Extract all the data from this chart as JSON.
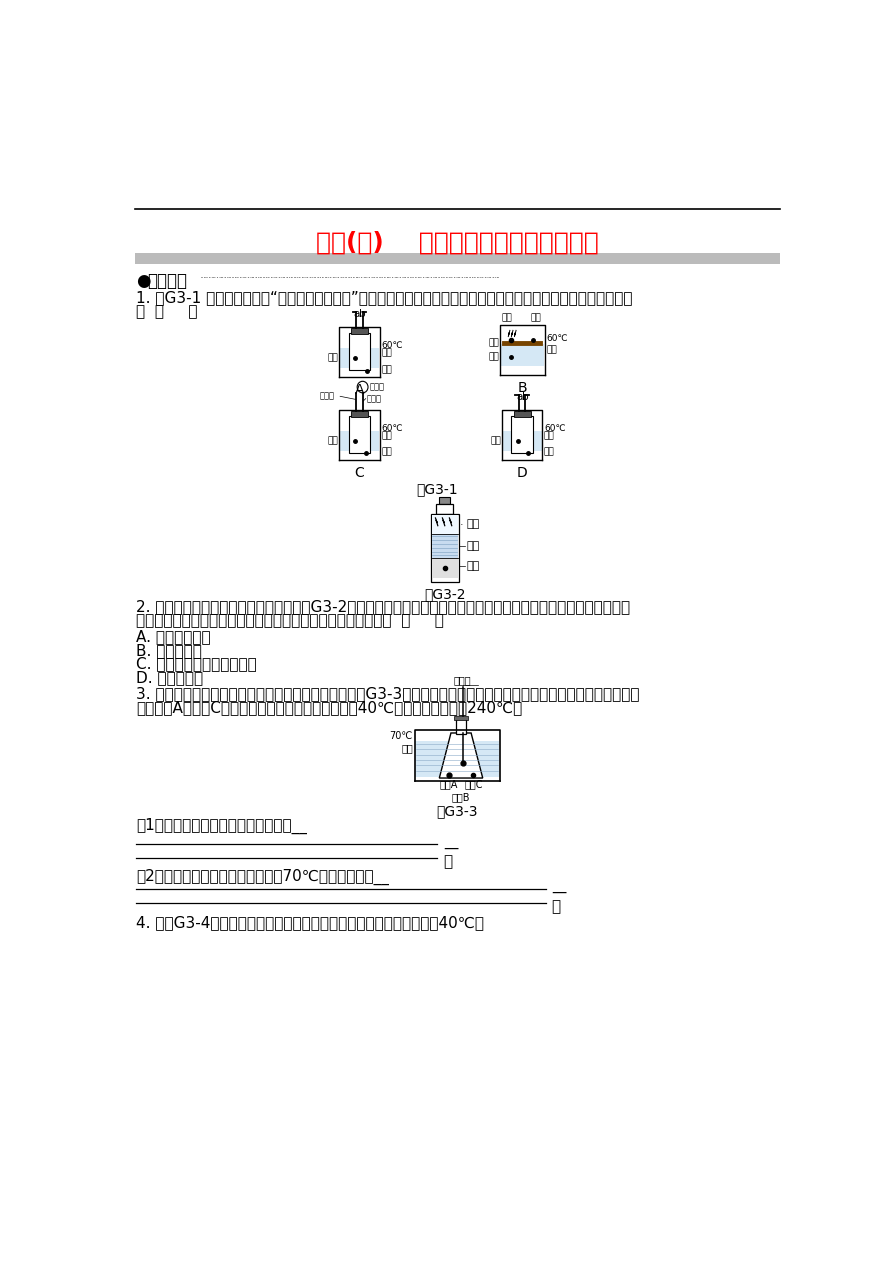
{
  "title": "专项(三)    燃烧条件的实验设计与改进",
  "title_color": "#FF0000",
  "title_fontsize": 18,
  "bg_color": "#FFFFFF",
  "q2_options": [
    "A. 必须用力振荡",
    "B. 与氧气接触",
    "C. 温度达到可燃物的着火点",
    "D. 要有可燃物"
  ]
}
